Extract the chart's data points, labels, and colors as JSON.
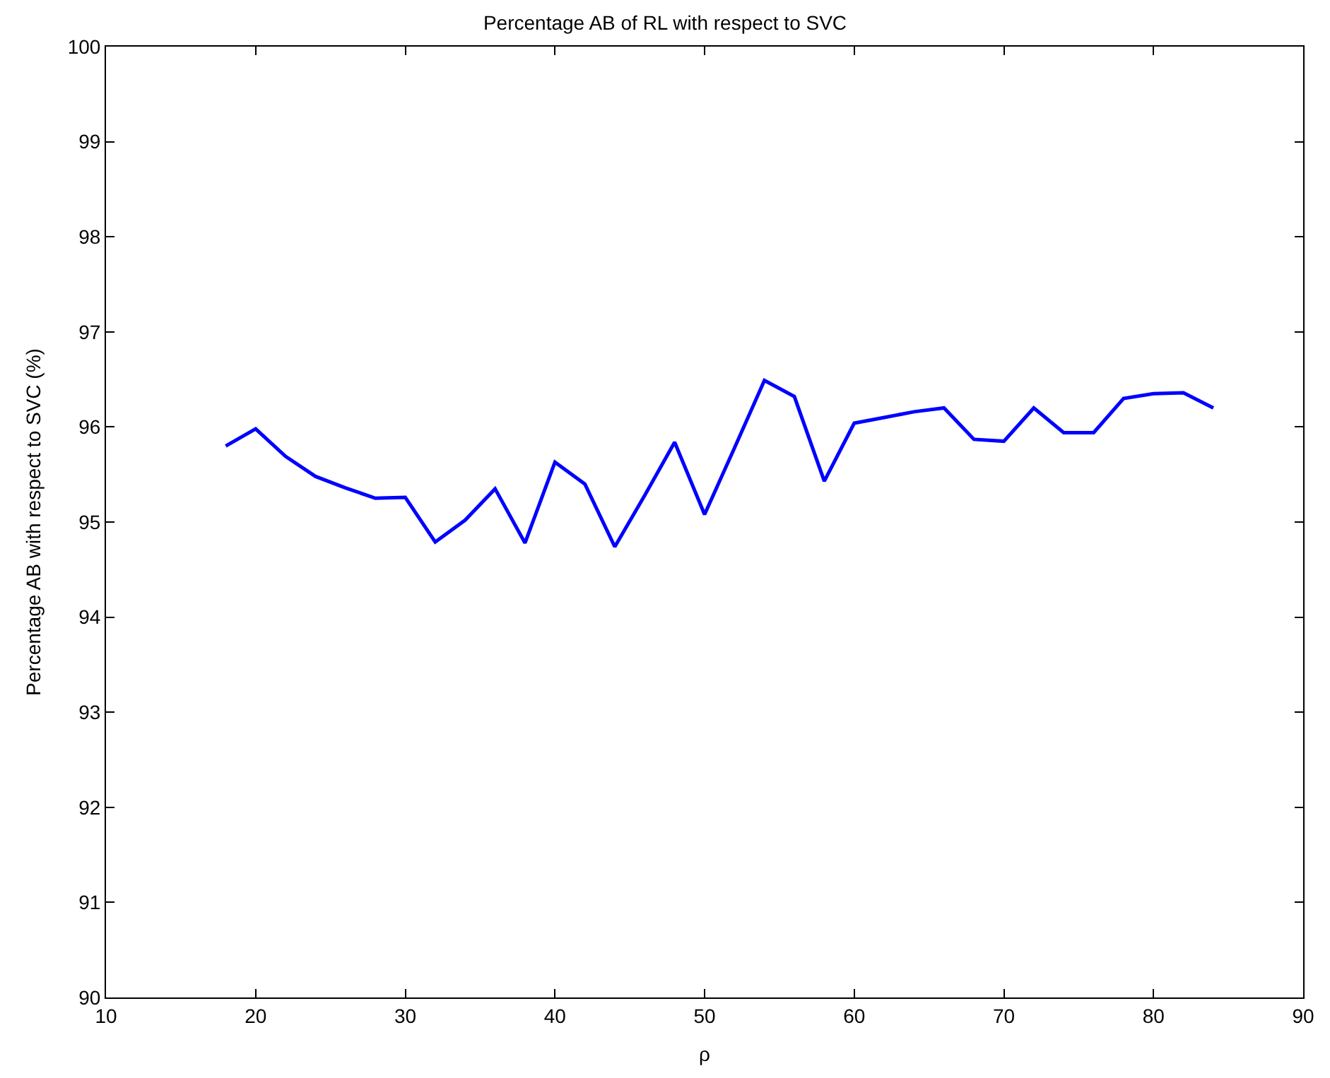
{
  "chart_data": {
    "type": "line",
    "title": "Percentage AB of RL with respect to SVC",
    "xlabel": "ρ",
    "ylabel": "Percentage AB with respect to SVC (%)",
    "x": [
      18,
      20,
      22,
      24,
      26,
      28,
      30,
      32,
      34,
      36,
      38,
      40,
      42,
      44,
      46,
      48,
      50,
      52,
      54,
      56,
      58,
      60,
      62,
      64,
      66,
      68,
      70,
      72,
      74,
      76,
      78,
      80,
      82,
      84
    ],
    "series": [
      {
        "color": "#0000ff",
        "values": [
          95.8,
          95.98,
          95.69,
          95.48,
          95.36,
          95.25,
          95.26,
          94.79,
          95.02,
          95.35,
          94.78,
          95.63,
          95.4,
          94.74,
          95.28,
          95.84,
          95.08,
          95.78,
          96.49,
          96.32,
          95.43,
          96.04,
          96.1,
          96.16,
          96.2,
          95.87,
          95.85,
          96.2,
          95.94,
          95.94,
          96.3,
          96.35,
          96.36,
          96.2
        ]
      }
    ],
    "xlim": [
      10,
      90
    ],
    "xticks": [
      10,
      20,
      30,
      40,
      50,
      60,
      70,
      80,
      90
    ],
    "ylim": [
      90,
      100
    ],
    "yticks": [
      90,
      91,
      92,
      93,
      94,
      95,
      96,
      97,
      98,
      99,
      100
    ],
    "grid": false,
    "marker": "none",
    "line_style": "solid"
  }
}
